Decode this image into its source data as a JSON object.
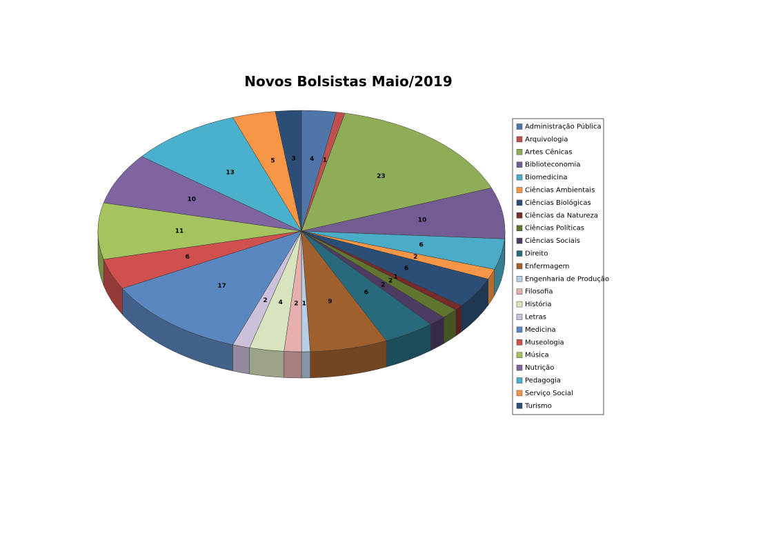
{
  "chart_data": {
    "type": "pie",
    "title": "Novos Bolsistas Maio/2019",
    "categories": [
      "Administração Pública",
      "Arquivologia",
      "Artes Cênicas",
      "Biblioteconomia",
      "Biomedicina",
      "Ciências Ambientais",
      "Ciências Biológicas",
      "Ciências da Natureza",
      "Ciências Políticas",
      "Ciências Sociais",
      "Direito",
      "Enfermagem",
      "Engenharia de Produção",
      "Filosofia",
      "História",
      "Letras",
      "Medicina",
      "Museologia",
      "Música",
      "Nutrição",
      "Pedagogia",
      "Serviço Social",
      "Turismo"
    ],
    "values": [
      4,
      1,
      23,
      10,
      6,
      2,
      6,
      1,
      2,
      2,
      6,
      9,
      1,
      2,
      4,
      2,
      17,
      6,
      11,
      10,
      13,
      5,
      3
    ],
    "colors": [
      "#4F76A8",
      "#C0504D",
      "#8FAD57",
      "#735C94",
      "#4AACC6",
      "#F79646",
      "#2C4D75",
      "#772C2A",
      "#5F7530",
      "#4D3B62",
      "#276A7C",
      "#A0602E",
      "#B9CDE5",
      "#E6B0AF",
      "#D7E4BD",
      "#CCC1DA",
      "#5B87C0",
      "#D0504D",
      "#A5C35F",
      "#8064A2",
      "#4BB0CB",
      "#F79646",
      "#2C4D75"
    ],
    "legend": "right"
  }
}
